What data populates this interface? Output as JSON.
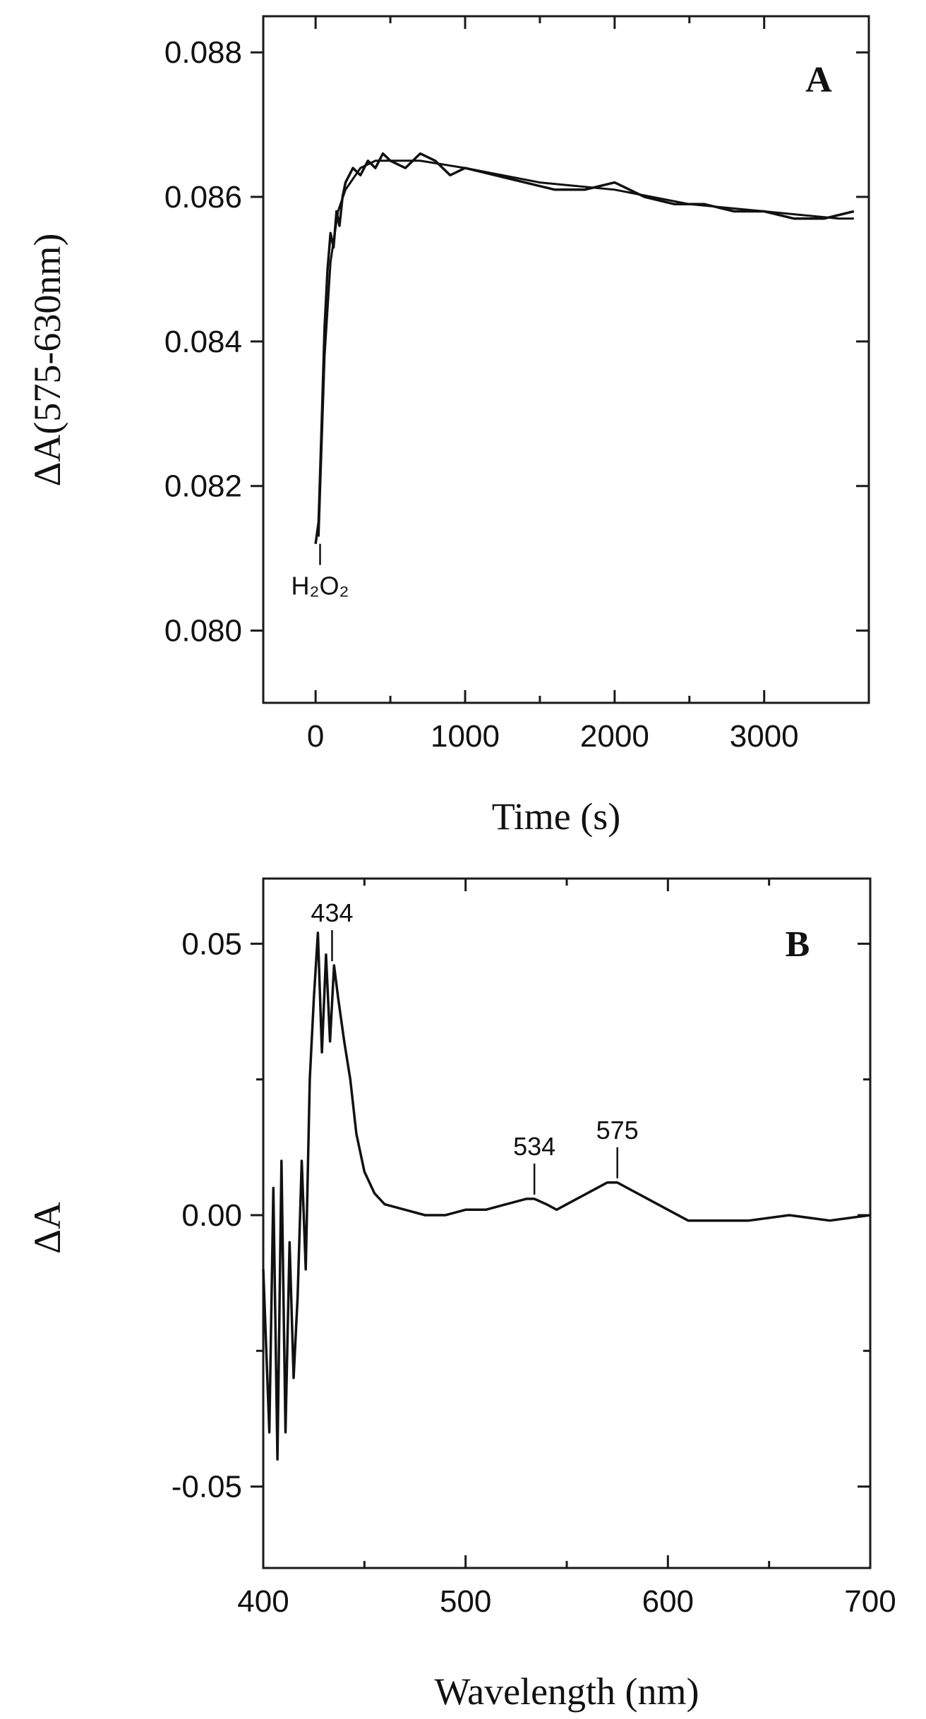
{
  "chart_data": [
    {
      "type": "line",
      "panel_label": "A",
      "xlabel": "Time (s)",
      "ylabel": "ΔA(575-630nm)",
      "xlim": [
        -350,
        3700
      ],
      "ylim": [
        0.079,
        0.0885
      ],
      "xticks": [
        0,
        1000,
        2000,
        3000
      ],
      "xtick_labels": [
        "0",
        "1000",
        "2000",
        "3000"
      ],
      "yticks": [
        0.08,
        0.082,
        0.084,
        0.086,
        0.088
      ],
      "ytick_labels": [
        "0.080",
        "0.082",
        "0.084",
        "0.086",
        "0.088"
      ],
      "grid": false,
      "annotation": {
        "text": "H₂O₂",
        "x": 30,
        "y": 0.0812
      },
      "series": [
        {
          "kind": "noisy trace",
          "x": [
            0,
            20,
            40,
            60,
            80,
            100,
            120,
            140,
            160,
            180,
            200,
            250,
            300,
            350,
            400,
            450,
            500,
            600,
            700,
            800,
            900,
            1000,
            1200,
            1400,
            1600,
            1800,
            2000,
            2200,
            2400,
            2600,
            2800,
            3000,
            3200,
            3400,
            3600
          ],
          "y": [
            0.0812,
            0.0815,
            0.0828,
            0.0842,
            0.085,
            0.0855,
            0.0853,
            0.0858,
            0.0856,
            0.086,
            0.0862,
            0.0864,
            0.0863,
            0.0865,
            0.0864,
            0.0866,
            0.0865,
            0.0864,
            0.0866,
            0.0865,
            0.0863,
            0.0864,
            0.0863,
            0.0862,
            0.0861,
            0.0861,
            0.0862,
            0.086,
            0.0859,
            0.0859,
            0.0858,
            0.0858,
            0.0857,
            0.0857,
            0.0858
          ]
        },
        {
          "kind": "fit",
          "x": [
            20,
            60,
            100,
            150,
            200,
            300,
            400,
            500,
            700,
            1000,
            1500,
            2000,
            2500,
            3000,
            3500,
            3600
          ],
          "y": [
            0.0813,
            0.0838,
            0.0851,
            0.0858,
            0.0861,
            0.0864,
            0.0865,
            0.0865,
            0.0865,
            0.0864,
            0.0862,
            0.0861,
            0.0859,
            0.0858,
            0.0857,
            0.0857
          ]
        }
      ]
    },
    {
      "type": "line",
      "panel_label": "B",
      "xlabel": "Wavelength (nm)",
      "ylabel": "ΔA",
      "xlim": [
        400,
        700
      ],
      "ylim": [
        -0.065,
        0.062
      ],
      "xticks": [
        400,
        500,
        600,
        700
      ],
      "xtick_labels": [
        "400",
        "500",
        "600",
        "700"
      ],
      "yticks": [
        -0.05,
        0.0,
        0.05
      ],
      "ytick_labels": [
        "-0.05",
        "0.00",
        "0.05"
      ],
      "grid": false,
      "peak_labels": [
        {
          "text": "434",
          "x": 434,
          "y": 0.046
        },
        {
          "text": "534",
          "x": 534,
          "y": 0.003
        },
        {
          "text": "575",
          "x": 575,
          "y": 0.006
        }
      ],
      "series": [
        {
          "x": [
            400,
            403,
            405,
            407,
            409,
            411,
            413,
            415,
            417,
            419,
            421,
            423,
            425,
            427,
            429,
            431,
            433,
            435,
            437,
            440,
            443,
            446,
            450,
            455,
            460,
            470,
            480,
            490,
            500,
            510,
            520,
            530,
            534,
            540,
            545,
            550,
            560,
            570,
            575,
            580,
            590,
            600,
            610,
            620,
            640,
            660,
            680,
            700
          ],
          "y": [
            -0.01,
            -0.04,
            0.005,
            -0.045,
            0.01,
            -0.04,
            -0.005,
            -0.03,
            -0.015,
            0.01,
            -0.01,
            0.025,
            0.04,
            0.052,
            0.03,
            0.048,
            0.032,
            0.046,
            0.04,
            0.032,
            0.025,
            0.015,
            0.008,
            0.004,
            0.002,
            0.001,
            0.0,
            0.0,
            0.001,
            0.001,
            0.002,
            0.003,
            0.003,
            0.002,
            0.001,
            0.002,
            0.004,
            0.006,
            0.006,
            0.005,
            0.003,
            0.001,
            -0.001,
            -0.001,
            -0.001,
            0.0,
            -0.001,
            0.0
          ]
        }
      ]
    }
  ]
}
